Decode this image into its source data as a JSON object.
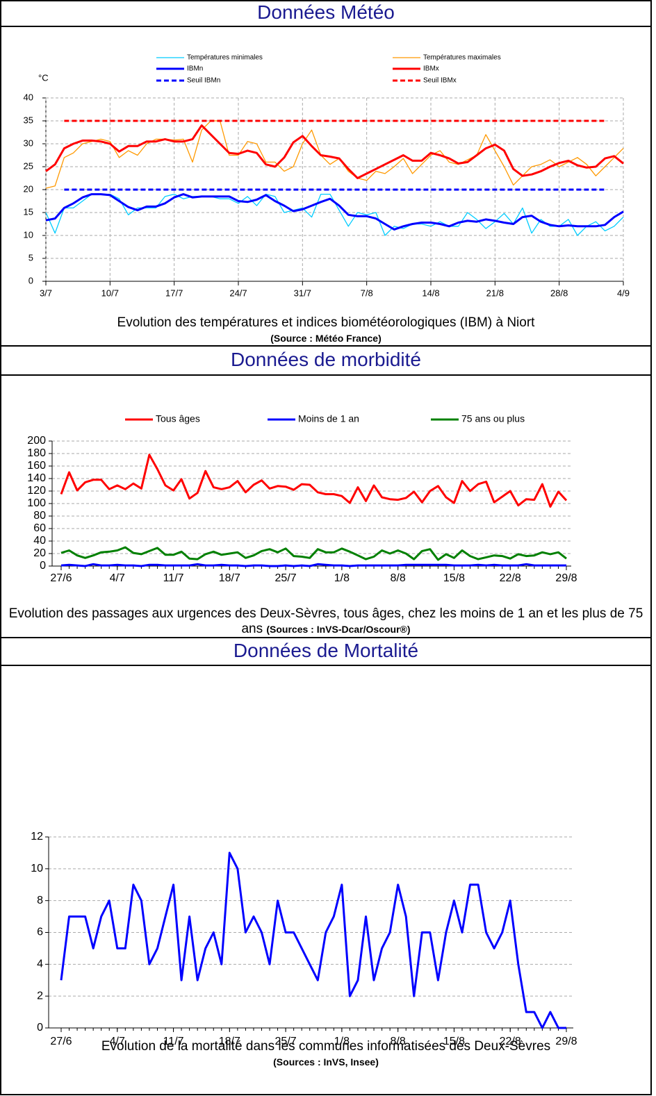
{
  "sections": [
    {
      "heading": "Données Météo"
    },
    {
      "heading": "Données de morbidité"
    },
    {
      "heading": "Données de Mortalité"
    }
  ],
  "chart_data": [
    {
      "type": "line",
      "y_label": "°C",
      "caption": "Evolution des températures et indices biométéorologiques (IBM) à Niort",
      "source": "(Source : Météo France)",
      "categories": [
        "3/7",
        null,
        null,
        null,
        null,
        null,
        null,
        "10/7",
        null,
        null,
        null,
        null,
        null,
        null,
        "17/7",
        null,
        null,
        null,
        null,
        null,
        null,
        "24/7",
        null,
        null,
        null,
        null,
        null,
        null,
        "31/7",
        null,
        null,
        null,
        null,
        null,
        null,
        "7/8",
        null,
        null,
        null,
        null,
        null,
        null,
        "14/8",
        null,
        null,
        null,
        null,
        null,
        null,
        "21/8",
        null,
        null,
        null,
        null,
        null,
        null,
        "28/8",
        null,
        null,
        null,
        null,
        null,
        null,
        "4/9"
      ],
      "ylim": [
        0,
        40
      ],
      "yticks": [
        0,
        5,
        10,
        15,
        20,
        25,
        30,
        35,
        40
      ],
      "grid": true,
      "xgrid": true,
      "series": [
        {
          "name": "Températures minimales",
          "color": "#00ccff",
          "linewidth": 1.3,
          "values": [
            15,
            10.5,
            16,
            16,
            17.5,
            19,
            19,
            19,
            18,
            14.5,
            16,
            16,
            16,
            18.5,
            19,
            18,
            18.5,
            18.5,
            18.5,
            18,
            18,
            17,
            18.5,
            16.5,
            19,
            18.5,
            15,
            15.5,
            16,
            14,
            19,
            19,
            15.5,
            12,
            15,
            14.5,
            15,
            10,
            12,
            11.5,
            12.5,
            12.5,
            12,
            13,
            12,
            12,
            15,
            13.5,
            11.5,
            13,
            14.8,
            12.5,
            16,
            10.5,
            13.5,
            12,
            12,
            13.5,
            10,
            12,
            13,
            11,
            12,
            14
          ]
        },
        {
          "name": "Températures maximales",
          "color": "#ff9900",
          "linewidth": 1.3,
          "values": [
            20.3,
            20.8,
            27,
            28,
            30,
            30.5,
            31,
            30.5,
            27,
            28.5,
            27.5,
            30,
            31,
            31,
            30.8,
            31,
            26,
            33,
            35,
            35,
            27.5,
            27.5,
            30.5,
            30,
            26,
            26,
            24,
            25,
            30,
            33,
            27.5,
            25.5,
            26.8,
            24,
            22.5,
            22,
            24,
            23.5,
            25,
            26.8,
            23.5,
            25.5,
            27.5,
            28.5,
            26,
            25.5,
            26.5,
            27.5,
            32,
            28.5,
            25,
            21,
            23,
            25,
            25.5,
            26.5,
            25,
            26,
            27,
            25.5,
            23,
            25,
            27,
            29
          ]
        },
        {
          "name": "IBMn",
          "color": "#0000ff",
          "linewidth": 3,
          "values": [
            13.3,
            13.7,
            16,
            17,
            18.3,
            19,
            19,
            18.8,
            17.5,
            16.2,
            15.5,
            16.3,
            16.3,
            17,
            18.3,
            19,
            18.3,
            18.5,
            18.5,
            18.5,
            18.5,
            17.5,
            17.3,
            17.8,
            18.8,
            17.5,
            16.5,
            15.3,
            15.7,
            16.5,
            17.3,
            18,
            16.5,
            14.5,
            14.2,
            14.2,
            13.7,
            12.5,
            11.3,
            12,
            12.5,
            12.8,
            12.8,
            12.5,
            12,
            12.8,
            13.2,
            13,
            13.5,
            13.2,
            12.8,
            12.5,
            14,
            14.3,
            13,
            12.3,
            12,
            12.2,
            12,
            12,
            12,
            12.3,
            14,
            15.2
          ]
        },
        {
          "name": "IBMx",
          "color": "#ff0000",
          "linewidth": 3,
          "values": [
            24,
            25.5,
            29,
            30,
            30.7,
            30.7,
            30.5,
            30,
            28.3,
            29.5,
            29.5,
            30.5,
            30.5,
            31,
            30.5,
            30.5,
            31,
            34,
            32,
            30,
            28,
            27.8,
            28.5,
            28,
            25.5,
            25,
            27,
            30.3,
            31.7,
            29.5,
            27.5,
            27.2,
            26.8,
            24.5,
            22.5,
            23.5,
            24.5,
            25.5,
            26.5,
            27.5,
            26.3,
            26.3,
            28,
            27.5,
            26.8,
            25.7,
            26,
            27.5,
            29,
            29.8,
            28.5,
            24.5,
            23,
            23.3,
            24,
            25,
            25.8,
            26.3,
            25.3,
            24.8,
            25,
            26.8,
            27.3,
            25.7
          ]
        },
        {
          "name": "Seuil IBMn",
          "color": "#0000ff",
          "linewidth": 3,
          "linestyle": "dashed",
          "values": [
            null,
            null,
            20,
            20,
            20,
            20,
            20,
            20,
            20,
            20,
            20,
            20,
            20,
            20,
            20,
            20,
            20,
            20,
            20,
            20,
            20,
            20,
            20,
            20,
            20,
            20,
            20,
            20,
            20,
            20,
            20,
            20,
            20,
            20,
            20,
            20,
            20,
            20,
            20,
            20,
            20,
            20,
            20,
            20,
            20,
            20,
            20,
            20,
            20,
            20,
            20,
            20,
            20,
            20,
            20,
            20,
            20,
            20,
            20,
            20,
            20,
            20,
            null,
            null
          ]
        },
        {
          "name": "Seuil IBMx",
          "color": "#ff0000",
          "linewidth": 3,
          "linestyle": "dashed",
          "values": [
            null,
            null,
            35,
            35,
            35,
            35,
            35,
            35,
            35,
            35,
            35,
            35,
            35,
            35,
            35,
            35,
            35,
            35,
            35,
            35,
            35,
            35,
            35,
            35,
            35,
            35,
            35,
            35,
            35,
            35,
            35,
            35,
            35,
            35,
            35,
            35,
            35,
            35,
            35,
            35,
            35,
            35,
            35,
            35,
            35,
            35,
            35,
            35,
            35,
            35,
            35,
            35,
            35,
            35,
            35,
            35,
            35,
            35,
            35,
            35,
            35,
            35,
            null,
            null
          ]
        }
      ]
    },
    {
      "type": "line",
      "caption": "Evolution des passages aux urgences des Deux-Sèvres, tous âges, chez les moins de 1 an et les plus de 75 ans",
      "source": "(Sources : InVS-Dcar/Oscour®)",
      "categories": [
        "27/6",
        null,
        null,
        null,
        null,
        null,
        null,
        "4/7",
        null,
        null,
        null,
        null,
        null,
        null,
        "11/7",
        null,
        null,
        null,
        null,
        null,
        null,
        "18/7",
        null,
        null,
        null,
        null,
        null,
        null,
        "25/7",
        null,
        null,
        null,
        null,
        null,
        null,
        "1/8",
        null,
        null,
        null,
        null,
        null,
        null,
        "8/8",
        null,
        null,
        null,
        null,
        null,
        null,
        "15/8",
        null,
        null,
        null,
        null,
        null,
        null,
        "22/8",
        null,
        null,
        null,
        null,
        null,
        null,
        "29/8"
      ],
      "ylim": [
        0,
        200
      ],
      "yticks": [
        0,
        20,
        40,
        60,
        80,
        100,
        120,
        140,
        160,
        180,
        200
      ],
      "grid": true,
      "series": [
        {
          "name": "Tous âges",
          "color": "#ff0000",
          "linewidth": 3,
          "values": [
            115,
            150,
            121,
            134,
            138,
            138,
            123,
            129,
            123,
            132,
            124,
            178,
            155,
            129,
            121,
            139,
            108,
            117,
            152,
            126,
            123,
            126,
            136,
            118,
            130,
            137,
            124,
            128,
            127,
            122,
            131,
            130,
            118,
            115,
            115,
            112,
            101,
            126,
            104,
            129,
            110,
            107,
            106,
            109,
            119,
            102,
            120,
            128,
            110,
            101,
            136,
            120,
            131,
            135,
            102,
            111,
            120,
            97,
            107,
            106,
            131,
            95,
            119,
            105
          ]
        },
        {
          "name": "Moins de 1 an",
          "color": "#0000ff",
          "linewidth": 3,
          "values": [
            1,
            2,
            1,
            0,
            3,
            1,
            1,
            2,
            1,
            1,
            0,
            2,
            2,
            1,
            1,
            1,
            1,
            3,
            1,
            1,
            2,
            1,
            1,
            0,
            1,
            1,
            0,
            0,
            1,
            0,
            1,
            0,
            3,
            2,
            1,
            1,
            0,
            1,
            1,
            1,
            1,
            1,
            1,
            2,
            2,
            2,
            2,
            2,
            2,
            1,
            1,
            1,
            2,
            1,
            2,
            1,
            1,
            1,
            3,
            1,
            1,
            1,
            1,
            1
          ]
        },
        {
          "name": "75 ans ou plus",
          "color": "#008000",
          "linewidth": 3,
          "values": [
            21,
            25,
            17,
            13,
            17,
            22,
            23,
            25,
            30,
            21,
            19,
            24,
            29,
            18,
            18,
            23,
            12,
            11,
            19,
            23,
            18,
            20,
            22,
            13,
            17,
            24,
            27,
            22,
            28,
            16,
            15,
            13,
            27,
            22,
            22,
            28,
            23,
            17,
            11,
            15,
            25,
            20,
            25,
            20,
            11,
            24,
            27,
            10,
            19,
            13,
            25,
            16,
            11,
            14,
            17,
            16,
            12,
            19,
            16,
            17,
            22,
            19,
            22,
            12
          ]
        }
      ]
    },
    {
      "type": "line",
      "caption": "Evolution de la mortalité dans les communes informatisées des Deux-Sèvres",
      "source": "(Sources : InVS, Insee)",
      "categories": [
        "27/6",
        null,
        null,
        null,
        null,
        null,
        null,
        "4/7",
        null,
        null,
        null,
        null,
        null,
        null,
        "11/7",
        null,
        null,
        null,
        null,
        null,
        null,
        "18/7",
        null,
        null,
        null,
        null,
        null,
        null,
        "25/7",
        null,
        null,
        null,
        null,
        null,
        null,
        "1/8",
        null,
        null,
        null,
        null,
        null,
        null,
        "8/8",
        null,
        null,
        null,
        null,
        null,
        null,
        "15/8",
        null,
        null,
        null,
        null,
        null,
        null,
        "22/8",
        null,
        null,
        null,
        null,
        null,
        null,
        "29/8"
      ],
      "ylim": [
        0,
        12
      ],
      "yticks": [
        0,
        2,
        4,
        6,
        8,
        10,
        12
      ],
      "grid": true,
      "color": "#0000ff",
      "linewidth": 3,
      "values": [
        3,
        7,
        7,
        7,
        5,
        7,
        8,
        5,
        5,
        9,
        8,
        4,
        5,
        7,
        9,
        3,
        7,
        3,
        5,
        6,
        4,
        11,
        10,
        6,
        7,
        6,
        4,
        8,
        6,
        6,
        5,
        4,
        3,
        6,
        7,
        9,
        2,
        3,
        7,
        3,
        5,
        6,
        9,
        7,
        2,
        6,
        6,
        3,
        6,
        8,
        6,
        9,
        9,
        6,
        5,
        6,
        8,
        4,
        1,
        1,
        0,
        1,
        0,
        0
      ]
    }
  ]
}
